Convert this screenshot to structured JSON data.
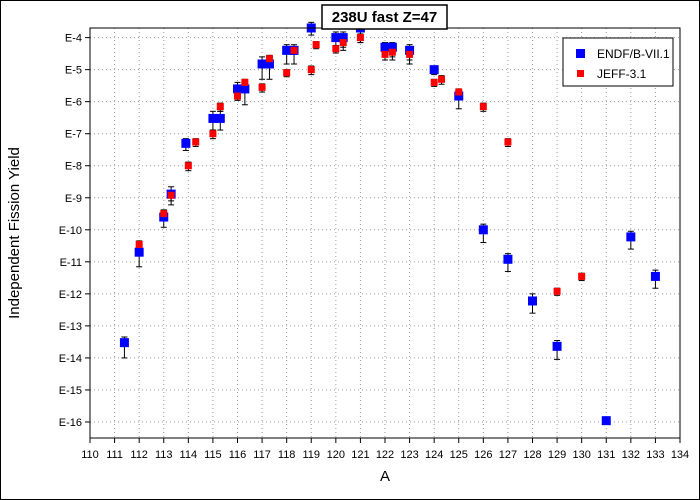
{
  "chart_data": {
    "type": "scatter",
    "title": "238U fast Z=47",
    "xlabel": "A",
    "ylabel": "Independent Fission Yield",
    "x_range": [
      110,
      134
    ],
    "y_scale": "log",
    "y_range_exponent": [
      -16.5,
      -3.7
    ],
    "x_ticks": [
      "110",
      "111",
      "112",
      "113",
      "114",
      "115",
      "116",
      "117",
      "118",
      "119",
      "120",
      "121",
      "122",
      "123",
      "124",
      "125",
      "126",
      "127",
      "128",
      "129",
      "130",
      "131",
      "132",
      "133",
      "134"
    ],
    "y_ticks": [
      "E-4",
      "E-5",
      "E-6",
      "E-7",
      "E-8",
      "E-9",
      "E-10",
      "E-11",
      "E-12",
      "E-13",
      "E-14",
      "E-15",
      "E-16"
    ],
    "grid": true,
    "legend_position": "top-right",
    "series": [
      {
        "name": "ENDF/B-VII.1",
        "color": "#0000ff",
        "marker": "square",
        "points": [
          {
            "x": 111.4,
            "y": 3e-14,
            "err_low": 1e-14,
            "err_high": 4.5e-14
          },
          {
            "x": 112.0,
            "y": 2e-11,
            "err_low": 7e-12,
            "err_high": 3e-11
          },
          {
            "x": 113.0,
            "y": 2.5e-10,
            "err_low": 1.2e-10,
            "err_high": 4e-10
          },
          {
            "x": 113.3,
            "y": 1.3e-09,
            "err_low": 6e-10,
            "err_high": 2.2e-09
          },
          {
            "x": 113.9,
            "y": 5e-08,
            "err_low": 3e-08,
            "err_high": 7e-08
          },
          {
            "x": 115.0,
            "y": 3e-07,
            "err_low": 1.3e-07,
            "err_high": 5e-07
          },
          {
            "x": 115.3,
            "y": 3e-07,
            "err_low": 1.3e-07,
            "err_high": 5e-07
          },
          {
            "x": 116.0,
            "y": 2.5e-06,
            "err_low": 1.2e-06,
            "err_high": 4e-06
          },
          {
            "x": 116.3,
            "y": 2.5e-06,
            "err_low": 8e-07,
            "err_high": 4e-06
          },
          {
            "x": 117.0,
            "y": 1.5e-05,
            "err_low": 5e-06,
            "err_high": 2.5e-05
          },
          {
            "x": 117.3,
            "y": 1.5e-05,
            "err_low": 5e-06,
            "err_high": 2.5e-05
          },
          {
            "x": 118.0,
            "y": 4e-05,
            "err_low": 1.5e-05,
            "err_high": 6e-05
          },
          {
            "x": 118.3,
            "y": 4e-05,
            "err_low": 1.5e-05,
            "err_high": 6e-05
          },
          {
            "x": 119.0,
            "y": 0.0002,
            "err_low": 0.00012,
            "err_high": 0.0003
          },
          {
            "x": 120.0,
            "y": 0.0001,
            "err_low": 4e-05,
            "err_high": 0.00015
          },
          {
            "x": 120.3,
            "y": 0.0001,
            "err_low": 4e-05,
            "err_high": 0.00015
          },
          {
            "x": 121.0,
            "y": 0.0002,
            "err_low": 7e-05,
            "err_high": 0.0003
          },
          {
            "x": 122.0,
            "y": 5e-05,
            "err_low": 2e-05,
            "err_high": 7e-05
          },
          {
            "x": 122.3,
            "y": 5e-05,
            "err_low": 2e-05,
            "err_high": 7e-05
          },
          {
            "x": 123.0,
            "y": 4e-05,
            "err_low": 1.5e-05,
            "err_high": 6e-05
          },
          {
            "x": 124.0,
            "y": 1e-05,
            "err_low": 7e-06,
            "err_high": 1.3e-05
          },
          {
            "x": 125.0,
            "y": 1.5e-06,
            "err_low": 6e-07,
            "err_high": 2.5e-06
          },
          {
            "x": 126.0,
            "y": 1e-10,
            "err_low": 4e-11,
            "err_high": 1.5e-10
          },
          {
            "x": 127.0,
            "y": 1.2e-11,
            "err_low": 5e-12,
            "err_high": 1.8e-11
          },
          {
            "x": 128.0,
            "y": 6e-13,
            "err_low": 2.5e-13,
            "err_high": 1e-12
          },
          {
            "x": 129.0,
            "y": 2.3e-14,
            "err_low": 9e-15,
            "err_high": 3.5e-14
          },
          {
            "x": 131.0,
            "y": 1.1e-16,
            "err_low": 1.1e-16,
            "err_high": 1.1e-16
          },
          {
            "x": 132.0,
            "y": 6e-11,
            "err_low": 2.5e-11,
            "err_high": 9e-11
          },
          {
            "x": 133.0,
            "y": 3.5e-12,
            "err_low": 1.5e-12,
            "err_high": 5.5e-12
          }
        ]
      },
      {
        "name": "JEFF-3.1",
        "color": "#ff0000",
        "marker": "square",
        "points": [
          {
            "x": 112.0,
            "y": 3.5e-11,
            "err_low": 2.5e-11,
            "err_high": 4.5e-11
          },
          {
            "x": 113.0,
            "y": 3.2e-10,
            "err_low": 2.2e-10,
            "err_high": 4.2e-10
          },
          {
            "x": 113.3,
            "y": 1.2e-09,
            "err_low": 8e-10,
            "err_high": 1.6e-09
          },
          {
            "x": 114.0,
            "y": 1e-08,
            "err_low": 7e-09,
            "err_high": 1.3e-08
          },
          {
            "x": 114.3,
            "y": 5.5e-08,
            "err_low": 4e-08,
            "err_high": 7e-08
          },
          {
            "x": 115.0,
            "y": 1e-07,
            "err_low": 7e-08,
            "err_high": 1.3e-07
          },
          {
            "x": 115.3,
            "y": 7e-07,
            "err_low": 5e-07,
            "err_high": 9e-07
          },
          {
            "x": 116.0,
            "y": 1.5e-06,
            "err_low": 1.1e-06,
            "err_high": 1.9e-06
          },
          {
            "x": 116.3,
            "y": 4e-06,
            "err_low": 3e-06,
            "err_high": 5e-06
          },
          {
            "x": 117.0,
            "y": 2.8e-06,
            "err_low": 2e-06,
            "err_high": 3.6e-06
          },
          {
            "x": 117.3,
            "y": 2.2e-05,
            "err_low": 1.6e-05,
            "err_high": 2.8e-05
          },
          {
            "x": 118.0,
            "y": 8e-06,
            "err_low": 6e-06,
            "err_high": 1e-05
          },
          {
            "x": 118.3,
            "y": 4e-05,
            "err_low": 3e-05,
            "err_high": 5e-05
          },
          {
            "x": 119.2,
            "y": 6e-05,
            "err_low": 4.5e-05,
            "err_high": 7.5e-05
          },
          {
            "x": 119.0,
            "y": 1e-05,
            "err_low": 7e-06,
            "err_high": 1.3e-05
          },
          {
            "x": 120.0,
            "y": 4.5e-05,
            "err_low": 3.3e-05,
            "err_high": 5.7e-05
          },
          {
            "x": 120.3,
            "y": 7e-05,
            "err_low": 5e-05,
            "err_high": 9e-05
          },
          {
            "x": 121.0,
            "y": 0.0001,
            "err_low": 7e-05,
            "err_high": 0.00013
          },
          {
            "x": 122.0,
            "y": 3e-05,
            "err_low": 2e-05,
            "err_high": 4e-05
          },
          {
            "x": 122.3,
            "y": 3.5e-05,
            "err_low": 2.5e-05,
            "err_high": 4.5e-05
          },
          {
            "x": 123.0,
            "y": 3e-05,
            "err_low": 2e-05,
            "err_high": 4e-05
          },
          {
            "x": 124.0,
            "y": 4e-06,
            "err_low": 3e-06,
            "err_high": 5e-06
          },
          {
            "x": 124.3,
            "y": 5e-06,
            "err_low": 3.5e-06,
            "err_high": 6.5e-06
          },
          {
            "x": 125.0,
            "y": 2e-06,
            "err_low": 1.5e-06,
            "err_high": 2.5e-06
          },
          {
            "x": 126.0,
            "y": 7e-07,
            "err_low": 5e-07,
            "err_high": 9e-07
          },
          {
            "x": 127.0,
            "y": 5.5e-08,
            "err_low": 4e-08,
            "err_high": 7e-08
          },
          {
            "x": 129.0,
            "y": 1.2e-12,
            "err_low": 9e-13,
            "err_high": 1.5e-12
          },
          {
            "x": 130.0,
            "y": 3.5e-12,
            "err_low": 2.6e-12,
            "err_high": 4.4e-12
          }
        ]
      }
    ]
  }
}
